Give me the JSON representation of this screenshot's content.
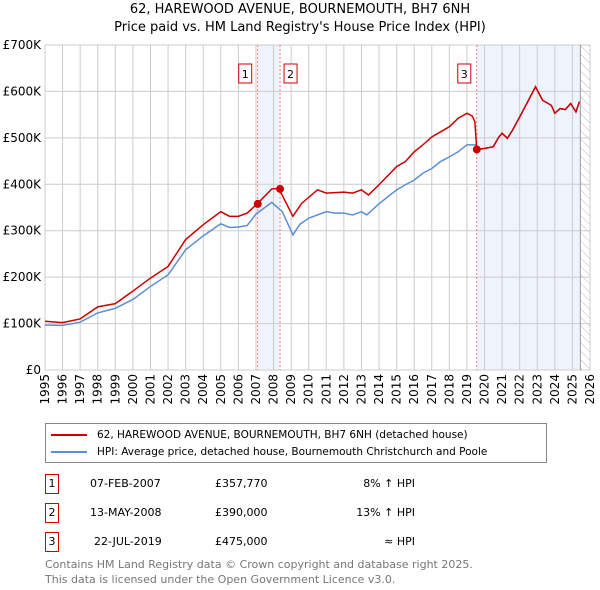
{
  "chart_data": {
    "type": "line",
    "title": "62, HAREWOOD AVENUE, BOURNEMOUTH, BH7 6NH",
    "subtitle": "Price paid vs. HM Land Registry's House Price Index (HPI)",
    "xlim": [
      1995,
      2026
    ],
    "ylim": [
      0,
      700000
    ],
    "y_ticks": [
      0,
      100000,
      200000,
      300000,
      400000,
      500000,
      600000,
      700000
    ],
    "y_tick_labels": [
      "£0",
      "£100K",
      "£200K",
      "£300K",
      "£400K",
      "£500K",
      "£600K",
      "£700K"
    ],
    "x_ticks": [
      1995,
      1996,
      1997,
      1998,
      1999,
      2000,
      2001,
      2002,
      2003,
      2004,
      2005,
      2006,
      2007,
      2008,
      2009,
      2010,
      2011,
      2012,
      2013,
      2014,
      2015,
      2016,
      2017,
      2018,
      2019,
      2020,
      2021,
      2022,
      2023,
      2024,
      2025,
      2026
    ],
    "grid": true,
    "series": [
      {
        "name": "62, HAREWOOD AVENUE, BOURNEMOUTH, BH7 6NH (detached house)",
        "color": "#cc0000",
        "x": [
          1995,
          1996,
          1997,
          1998,
          1999,
          2000,
          2001,
          2002,
          2003,
          2004,
          2005,
          2005.5,
          2006,
          2006.5,
          2007.1,
          2007.9,
          2008.3,
          2009.1,
          2009.6,
          2010.5,
          2011,
          2012,
          2012.5,
          2013,
          2013.4,
          2014,
          2015,
          2015.5,
          2016,
          2016.5,
          2017,
          2017.5,
          2018,
          2018.5,
          2019,
          2019.3,
          2019.45,
          2019.56,
          2020,
          2020.5,
          2020.8,
          2021,
          2021.3,
          2021.6,
          2022,
          2022.5,
          2022.9,
          2023.3,
          2023.8,
          2024,
          2024.3,
          2024.6,
          2024.9,
          2025.2,
          2025.4
        ],
        "y": [
          105000,
          102000,
          110000,
          136000,
          143000,
          170000,
          198000,
          223000,
          281000,
          313000,
          341000,
          331000,
          331000,
          338000,
          359000,
          390000,
          391000,
          331000,
          359000,
          388000,
          381000,
          383000,
          381000,
          388000,
          377000,
          399000,
          438000,
          449000,
          470000,
          485000,
          502000,
          513000,
          524000,
          542000,
          553000,
          547000,
          535000,
          475000,
          477000,
          481000,
          501000,
          510000,
          499000,
          517000,
          545000,
          581000,
          610000,
          581000,
          570000,
          553000,
          563000,
          561000,
          574000,
          556000,
          578000
        ]
      },
      {
        "name": "HPI: Average price, detached house, Bournemouth Christchurch and Poole",
        "color": "#5b8fd4",
        "x": [
          1995,
          1996,
          1997,
          1998,
          1999,
          2000,
          2001,
          2002,
          2003,
          2004,
          2005,
          2005.5,
          2006,
          2006.5,
          2007,
          2007.9,
          2008.5,
          2009.1,
          2009.5,
          2010,
          2011,
          2011.5,
          2012,
          2012.5,
          2013,
          2013.3,
          2014,
          2015,
          2015.5,
          2016,
          2016.5,
          2017,
          2017.5,
          2018,
          2018.5,
          2019,
          2019.5,
          2019.6,
          2020,
          2020.5,
          2020.8,
          2021,
          2021.3,
          2021.6,
          2022,
          2022.5,
          2022.9,
          2023.3,
          2023.8,
          2024,
          2024.3,
          2024.6,
          2024.9,
          2025.2,
          2025.4
        ],
        "y": [
          97000,
          96000,
          103000,
          123000,
          133000,
          152000,
          180000,
          205000,
          259000,
          289000,
          315000,
          307000,
          308000,
          311000,
          336000,
          361000,
          341000,
          291000,
          314000,
          327000,
          341000,
          338000,
          338000,
          334000,
          341000,
          334000,
          358000,
          388000,
          399000,
          409000,
          424000,
          434000,
          449000,
          459000,
          470000,
          485000,
          485000,
          476000,
          477000,
          481000,
          501000,
          510000,
          499000,
          517000,
          545000,
          581000,
          610000,
          581000,
          570000,
          553000,
          563000,
          561000,
          574000,
          556000,
          578000
        ]
      }
    ],
    "sales": [
      {
        "label": "1",
        "x": 2007.1,
        "price": 357770,
        "date": "07-FEB-2007",
        "price_text": "£357,770",
        "hpi": "8% ↑ HPI"
      },
      {
        "label": "2",
        "x": 2008.37,
        "price": 390000,
        "date": "13-MAY-2008",
        "price_text": "£390,000",
        "hpi": "13% ↑ HPI"
      },
      {
        "label": "3",
        "x": 2019.56,
        "price": 475000,
        "date": "22-JUL-2019",
        "price_text": "£475,000",
        "hpi": "≈ HPI"
      }
    ],
    "shaded_ranges": [
      [
        2007.1,
        2008.37
      ],
      [
        2019.56,
        2025.45
      ]
    ],
    "forecast_hatch_from": 2025.45,
    "legend_placement": "below"
  },
  "footer": {
    "line1": "Contains HM Land Registry data © Crown copyright and database right 2025.",
    "line2": "This data is licensed under the Open Government Licence v3.0."
  }
}
